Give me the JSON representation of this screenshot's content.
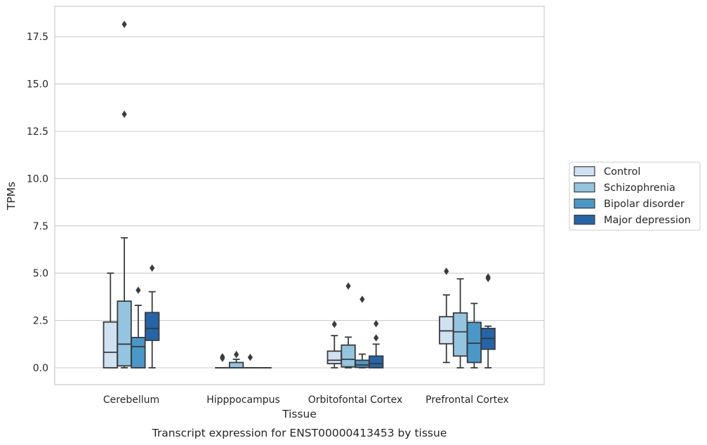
{
  "chart_data": {
    "type": "box",
    "xlabel": "Tissue",
    "ylabel": "TPMs",
    "caption": "Transcript expression for ENST00000413453 by tissue",
    "ylim": [
      -0.9,
      19.0
    ],
    "yticks": [
      0.0,
      2.5,
      5.0,
      7.5,
      10.0,
      12.5,
      15.0,
      17.5
    ],
    "ytick_labels": [
      "0.0",
      "2.5",
      "5.0",
      "7.5",
      "10.0",
      "12.5",
      "15.0",
      "17.5"
    ],
    "grid": "horizontal",
    "legend_position": "right",
    "categories": [
      "Cerebellum",
      "Hipppocampus",
      "Orbitofontal Cortex",
      "Prefrontal Cortex"
    ],
    "series": [
      {
        "name": "Control",
        "color": "#d0e1f2",
        "boxes": [
          {
            "min": 0.0,
            "q1": 0.0,
            "median": 0.82,
            "q3": 2.42,
            "max": 5.0,
            "outliers": []
          },
          {
            "min": 0.0,
            "q1": 0.0,
            "median": 0.0,
            "q3": 0.0,
            "max": 0.0,
            "outliers": [
              0.5,
              0.58
            ]
          },
          {
            "min": 0.0,
            "q1": 0.22,
            "median": 0.4,
            "q3": 0.88,
            "max": 1.7,
            "outliers": [
              2.3
            ]
          },
          {
            "min": 0.28,
            "q1": 1.27,
            "median": 1.95,
            "q3": 2.7,
            "max": 3.85,
            "outliers": [
              5.1
            ]
          }
        ]
      },
      {
        "name": "Schizophrenia",
        "color": "#94c4df",
        "boxes": [
          {
            "min": 0.0,
            "q1": 0.1,
            "median": 1.25,
            "q3": 3.52,
            "max": 6.87,
            "outliers": [
              13.4,
              18.15
            ]
          },
          {
            "min": 0.0,
            "q1": 0.0,
            "median": 0.0,
            "q3": 0.28,
            "max": 0.45,
            "outliers": [
              0.7
            ]
          },
          {
            "min": 0.0,
            "q1": 0.05,
            "median": 0.45,
            "q3": 1.2,
            "max": 1.62,
            "outliers": [
              4.32
            ]
          },
          {
            "min": 0.0,
            "q1": 0.62,
            "median": 1.9,
            "q3": 2.9,
            "max": 4.7,
            "outliers": []
          }
        ]
      },
      {
        "name": "Bipolar disorder",
        "color": "#4a98c9",
        "boxes": [
          {
            "min": 0.0,
            "q1": 0.0,
            "median": 1.12,
            "q3": 1.6,
            "max": 3.3,
            "outliers": [
              4.1
            ]
          },
          {
            "min": 0.0,
            "q1": 0.0,
            "median": 0.0,
            "q3": 0.0,
            "max": 0.0,
            "outliers": [
              0.55
            ]
          },
          {
            "min": 0.0,
            "q1": 0.02,
            "median": 0.15,
            "q3": 0.4,
            "max": 0.72,
            "outliers": [
              3.62
            ]
          },
          {
            "min": 0.0,
            "q1": 0.28,
            "median": 1.3,
            "q3": 2.4,
            "max": 3.4,
            "outliers": []
          }
        ]
      },
      {
        "name": "Major depression",
        "color": "#2464a9",
        "boxes": [
          {
            "min": 0.0,
            "q1": 1.45,
            "median": 2.08,
            "q3": 2.92,
            "max": 4.02,
            "outliers": [
              5.27
            ]
          },
          {
            "min": 0.0,
            "q1": 0.0,
            "median": 0.0,
            "q3": 0.0,
            "max": 0.0,
            "outliers": []
          },
          {
            "min": 0.0,
            "q1": 0.0,
            "median": 0.22,
            "q3": 0.62,
            "max": 1.25,
            "outliers": [
              1.58,
              2.33
            ]
          },
          {
            "min": 0.0,
            "q1": 0.98,
            "median": 1.55,
            "q3": 2.08,
            "max": 2.2,
            "outliers": [
              4.72,
              4.8
            ]
          }
        ]
      }
    ]
  }
}
